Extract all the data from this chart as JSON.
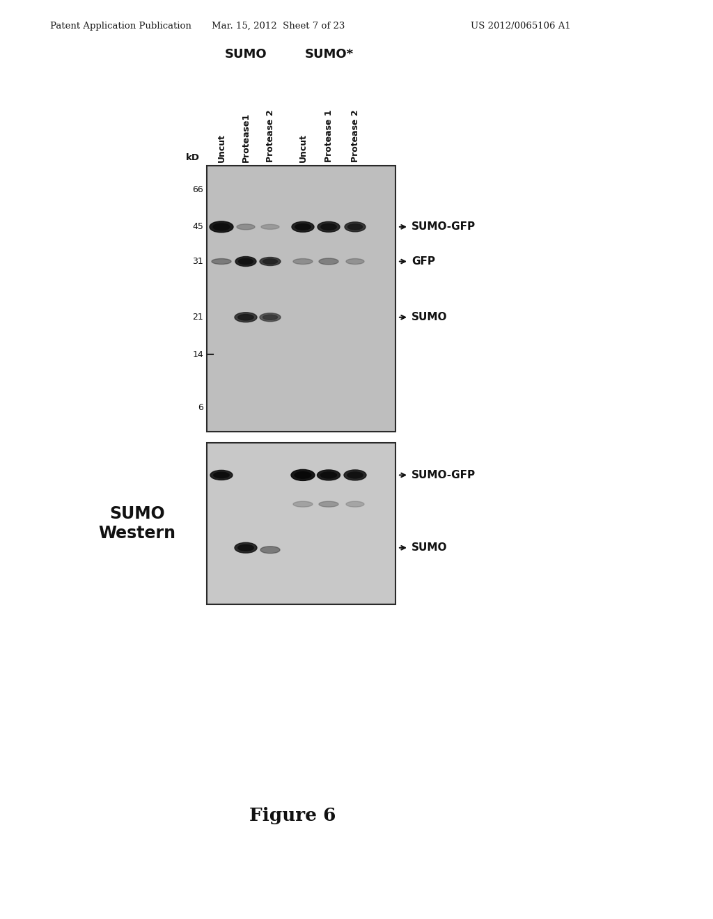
{
  "header_left": "Patent Application Publication",
  "header_center": "Mar. 15, 2012  Sheet 7 of 23",
  "header_right": "US 2012/0065106 A1",
  "figure_caption": "Figure 6",
  "sumo_label": "SUMO",
  "sumostar_label": "SUMO*",
  "column_labels": [
    "Uncut",
    "Protease1",
    "Protease 2",
    "Uncut",
    "Protease 1",
    "Protease 2"
  ],
  "kd_label": "kD",
  "mw_markers": [
    "66",
    "45",
    "31",
    "21",
    "14",
    "6"
  ],
  "sumo_western_label": "SUMO\nWestern",
  "background_color": "#ffffff",
  "panel1_bg": "#c8c8c8",
  "panel2_bg": "#d0d0d0"
}
